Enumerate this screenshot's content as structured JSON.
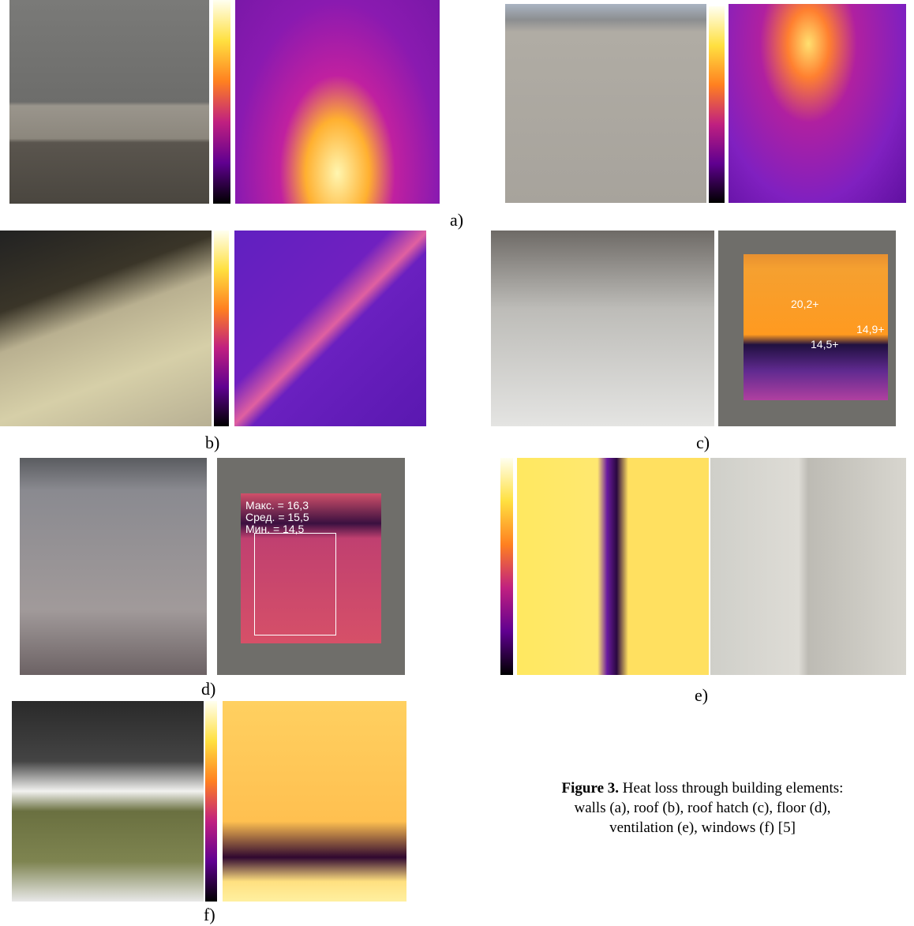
{
  "panels": [
    {
      "label": "a)"
    },
    {
      "label": "b)"
    },
    {
      "label": "c)"
    },
    {
      "label": "d)"
    },
    {
      "label": "e)"
    },
    {
      "label": "f)"
    }
  ],
  "thermal_labels": {
    "c": [
      "20,2+",
      "14,9+",
      "14,5+"
    ],
    "d": [
      "Макс. = 16,3",
      "Сред. = 15,5",
      "Мин. = 14,5"
    ]
  },
  "caption": {
    "label": "Figure 3.",
    "lines": [
      "Heat loss through building elements:",
      "walls (a), roof (b), roof hatch (c), floor (d),",
      "ventilation (e), windows (f) [5]"
    ]
  }
}
